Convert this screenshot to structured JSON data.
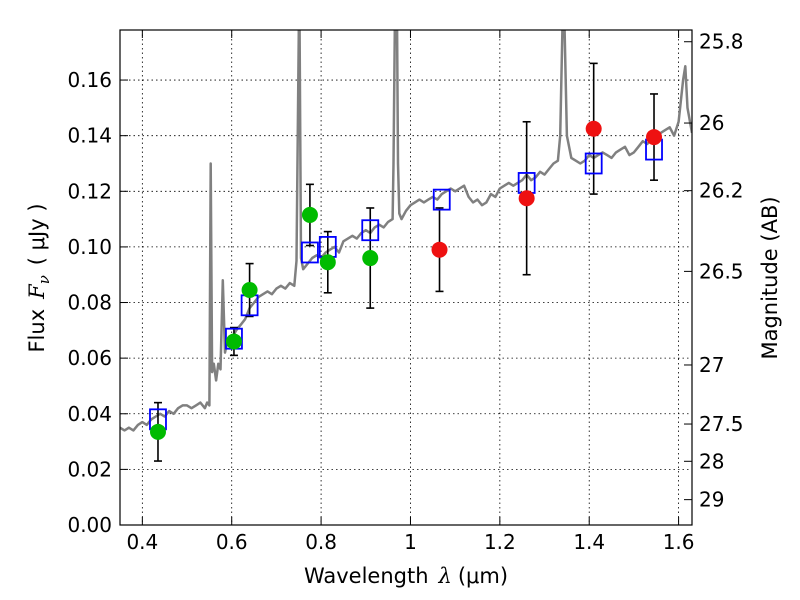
{
  "chart_data": {
    "type": "scatter",
    "xlabel": {
      "text": "Wavelength",
      "symbol": "λ",
      "unit": "(μm)"
    },
    "ylabel": {
      "text": "Flux",
      "symbol": "F",
      "subscript": "ν",
      "unit": "( μJy )"
    },
    "y2label": "Magnitude (AB)",
    "xlim": [
      0.35,
      1.63
    ],
    "ylim": [
      0.0,
      0.178
    ],
    "xticks": [
      0.4,
      0.6,
      0.8,
      1.0,
      1.2,
      1.4,
      1.6
    ],
    "xtick_labels": [
      "0.4",
      "0.6",
      "0.8",
      "1",
      "1.2",
      "1.4",
      "1.6"
    ],
    "yticks": [
      0.0,
      0.02,
      0.04,
      0.06,
      0.08,
      0.1,
      0.12,
      0.14,
      0.16
    ],
    "ytick_labels": [
      "0.00",
      "0.02",
      "0.04",
      "0.06",
      "0.08",
      "0.10",
      "0.12",
      "0.14",
      "0.16"
    ],
    "magnitude_ticks": [
      {
        "mag": 25.8,
        "label": "25.8"
      },
      {
        "mag": 26.0,
        "label": "26"
      },
      {
        "mag": 26.2,
        "label": "26.2"
      },
      {
        "mag": 26.5,
        "label": "26.5"
      },
      {
        "mag": 27.0,
        "label": "27"
      },
      {
        "mag": 27.5,
        "label": "27.5"
      },
      {
        "mag": 28.0,
        "label": "28"
      },
      {
        "mag": 29.0,
        "label": "29"
      }
    ],
    "grid": true,
    "series": [
      {
        "kind": "model_spectrum",
        "color": "#808080",
        "points": [
          [
            0.35,
            0.035
          ],
          [
            0.36,
            0.034
          ],
          [
            0.37,
            0.035
          ],
          [
            0.38,
            0.034
          ],
          [
            0.39,
            0.036
          ],
          [
            0.4,
            0.037
          ],
          [
            0.41,
            0.036
          ],
          [
            0.42,
            0.038
          ],
          [
            0.43,
            0.039
          ],
          [
            0.44,
            0.04
          ],
          [
            0.45,
            0.039
          ],
          [
            0.46,
            0.041
          ],
          [
            0.47,
            0.04
          ],
          [
            0.48,
            0.042
          ],
          [
            0.49,
            0.043
          ],
          [
            0.5,
            0.043
          ],
          [
            0.51,
            0.042
          ],
          [
            0.52,
            0.043
          ],
          [
            0.53,
            0.044
          ],
          [
            0.54,
            0.042
          ],
          [
            0.545,
            0.044
          ],
          [
            0.55,
            0.043
          ],
          [
            0.553,
            0.13
          ],
          [
            0.556,
            0.055
          ],
          [
            0.56,
            0.058
          ],
          [
            0.565,
            0.052
          ],
          [
            0.57,
            0.058
          ],
          [
            0.575,
            0.056
          ],
          [
            0.58,
            0.088
          ],
          [
            0.585,
            0.062
          ],
          [
            0.59,
            0.066
          ],
          [
            0.6,
            0.067
          ],
          [
            0.61,
            0.07
          ],
          [
            0.62,
            0.072
          ],
          [
            0.63,
            0.074
          ],
          [
            0.64,
            0.078
          ],
          [
            0.65,
            0.08
          ],
          [
            0.66,
            0.082
          ],
          [
            0.67,
            0.083
          ],
          [
            0.68,
            0.084
          ],
          [
            0.69,
            0.083
          ],
          [
            0.7,
            0.085
          ],
          [
            0.71,
            0.086
          ],
          [
            0.72,
            0.085
          ],
          [
            0.73,
            0.087
          ],
          [
            0.74,
            0.086
          ],
          [
            0.745,
            0.095
          ],
          [
            0.75,
            0.178
          ],
          [
            0.752,
            0.178
          ],
          [
            0.755,
            0.096
          ],
          [
            0.76,
            0.092
          ],
          [
            0.77,
            0.094
          ],
          [
            0.78,
            0.096
          ],
          [
            0.79,
            0.097
          ],
          [
            0.8,
            0.096
          ],
          [
            0.81,
            0.098
          ],
          [
            0.82,
            0.099
          ],
          [
            0.83,
            0.1
          ],
          [
            0.84,
            0.098
          ],
          [
            0.85,
            0.102
          ],
          [
            0.86,
            0.103
          ],
          [
            0.87,
            0.104
          ],
          [
            0.88,
            0.103
          ],
          [
            0.89,
            0.105
          ],
          [
            0.9,
            0.106
          ],
          [
            0.91,
            0.105
          ],
          [
            0.92,
            0.107
          ],
          [
            0.93,
            0.108
          ],
          [
            0.94,
            0.107
          ],
          [
            0.95,
            0.109
          ],
          [
            0.96,
            0.11
          ],
          [
            0.962,
            0.13
          ],
          [
            0.965,
            0.178
          ],
          [
            0.97,
            0.178
          ],
          [
            0.972,
            0.13
          ],
          [
            0.975,
            0.112
          ],
          [
            0.98,
            0.11
          ],
          [
            0.99,
            0.113
          ],
          [
            1.0,
            0.115
          ],
          [
            1.01,
            0.116
          ],
          [
            1.02,
            0.117
          ],
          [
            1.03,
            0.116
          ],
          [
            1.04,
            0.117
          ],
          [
            1.05,
            0.118
          ],
          [
            1.06,
            0.117
          ],
          [
            1.07,
            0.119
          ],
          [
            1.08,
            0.12
          ],
          [
            1.09,
            0.121
          ],
          [
            1.1,
            0.12
          ],
          [
            1.11,
            0.121
          ],
          [
            1.12,
            0.122
          ],
          [
            1.13,
            0.118
          ],
          [
            1.14,
            0.116
          ],
          [
            1.15,
            0.117
          ],
          [
            1.16,
            0.115
          ],
          [
            1.17,
            0.116
          ],
          [
            1.18,
            0.119
          ],
          [
            1.19,
            0.118
          ],
          [
            1.2,
            0.121
          ],
          [
            1.21,
            0.122
          ],
          [
            1.22,
            0.123
          ],
          [
            1.23,
            0.122
          ],
          [
            1.24,
            0.123
          ],
          [
            1.25,
            0.124
          ],
          [
            1.26,
            0.126
          ],
          [
            1.27,
            0.124
          ],
          [
            1.28,
            0.125
          ],
          [
            1.29,
            0.127
          ],
          [
            1.3,
            0.126
          ],
          [
            1.31,
            0.128
          ],
          [
            1.32,
            0.13
          ],
          [
            1.33,
            0.131
          ],
          [
            1.335,
            0.14
          ],
          [
            1.34,
            0.178
          ],
          [
            1.345,
            0.178
          ],
          [
            1.35,
            0.14
          ],
          [
            1.36,
            0.132
          ],
          [
            1.37,
            0.131
          ],
          [
            1.38,
            0.13
          ],
          [
            1.39,
            0.131
          ],
          [
            1.4,
            0.133
          ],
          [
            1.41,
            0.132
          ],
          [
            1.42,
            0.133
          ],
          [
            1.43,
            0.134
          ],
          [
            1.44,
            0.133
          ],
          [
            1.45,
            0.132
          ],
          [
            1.46,
            0.134
          ],
          [
            1.47,
            0.135
          ],
          [
            1.48,
            0.136
          ],
          [
            1.49,
            0.133
          ],
          [
            1.5,
            0.134
          ],
          [
            1.51,
            0.136
          ],
          [
            1.52,
            0.138
          ],
          [
            1.53,
            0.137
          ],
          [
            1.54,
            0.139
          ],
          [
            1.55,
            0.14
          ],
          [
            1.56,
            0.141
          ],
          [
            1.57,
            0.142
          ],
          [
            1.58,
            0.143
          ],
          [
            1.59,
            0.14
          ],
          [
            1.6,
            0.145
          ],
          [
            1.61,
            0.16
          ],
          [
            1.615,
            0.165
          ],
          [
            1.62,
            0.15
          ],
          [
            1.63,
            0.141
          ]
        ]
      },
      {
        "kind": "model_photometry",
        "marker": "open-square",
        "color": "#0000ff",
        "points": [
          {
            "x": 0.435,
            "y": 0.038
          },
          {
            "x": 0.605,
            "y": 0.067
          },
          {
            "x": 0.64,
            "y": 0.079
          },
          {
            "x": 0.775,
            "y": 0.098
          },
          {
            "x": 0.815,
            "y": 0.1
          },
          {
            "x": 0.91,
            "y": 0.106
          },
          {
            "x": 1.07,
            "y": 0.117
          },
          {
            "x": 1.26,
            "y": 0.123
          },
          {
            "x": 1.41,
            "y": 0.13
          },
          {
            "x": 1.545,
            "y": 0.135
          }
        ]
      },
      {
        "kind": "observed_optical",
        "marker": "filled-circle",
        "color": "#00bb00",
        "points": [
          {
            "x": 0.435,
            "y": 0.0335,
            "err": 0.0105
          },
          {
            "x": 0.605,
            "y": 0.066,
            "err": 0.005
          },
          {
            "x": 0.64,
            "y": 0.0845,
            "err": 0.0095
          },
          {
            "x": 0.775,
            "y": 0.1115,
            "err": 0.011
          },
          {
            "x": 0.815,
            "y": 0.0945,
            "err": 0.011
          },
          {
            "x": 0.91,
            "y": 0.096,
            "err": 0.018
          }
        ]
      },
      {
        "kind": "observed_nir",
        "marker": "filled-circle",
        "color": "#ee1111",
        "points": [
          {
            "x": 1.065,
            "y": 0.099,
            "err": 0.015
          },
          {
            "x": 1.26,
            "y": 0.1175,
            "err": 0.0275
          },
          {
            "x": 1.41,
            "y": 0.1425,
            "err": 0.0235
          },
          {
            "x": 1.545,
            "y": 0.1395,
            "err": 0.0155
          }
        ]
      }
    ]
  }
}
